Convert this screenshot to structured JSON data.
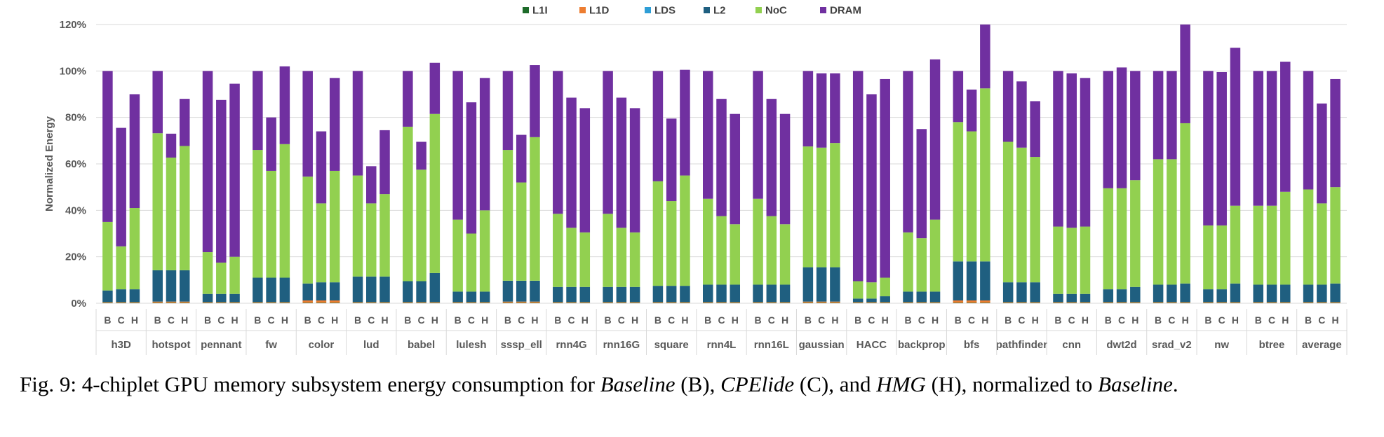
{
  "chart_data": {
    "type": "bar",
    "stacked": true,
    "ylabel": "Normalized Energy",
    "ylim": [
      0,
      120
    ],
    "yticks": [
      "0%",
      "20%",
      "40%",
      "60%",
      "80%",
      "100%",
      "120%"
    ],
    "grid": true,
    "legend_position": "top-center",
    "configs": [
      "B",
      "C",
      "H"
    ],
    "series": [
      {
        "name": "L1I",
        "color": "#1e6b2a"
      },
      {
        "name": "L1D",
        "color": "#ed7d31"
      },
      {
        "name": "LDS",
        "color": "#2e9ed6"
      },
      {
        "name": "L2",
        "color": "#1f5f80"
      },
      {
        "name": "NoC",
        "color": "#92d050"
      },
      {
        "name": "DRAM",
        "color": "#7030a0"
      }
    ],
    "benchmarks": [
      {
        "name": "h3D",
        "bars": [
          {
            "cfg": "B",
            "L1I": 0.2,
            "L1D": 0.3,
            "LDS": 0,
            "L2": 5,
            "NoC": 29.5,
            "DRAM": 65
          },
          {
            "cfg": "C",
            "L1I": 0.2,
            "L1D": 0.3,
            "LDS": 0,
            "L2": 5.5,
            "NoC": 18.5,
            "DRAM": 51
          },
          {
            "cfg": "H",
            "L1I": 0.2,
            "L1D": 0.3,
            "LDS": 0,
            "L2": 5.5,
            "NoC": 35,
            "DRAM": 49
          }
        ]
      },
      {
        "name": "hotspot",
        "bars": [
          {
            "cfg": "B",
            "L1I": 0.2,
            "L1D": 0.5,
            "LDS": 0,
            "L2": 13.5,
            "NoC": 59,
            "DRAM": 26.8
          },
          {
            "cfg": "C",
            "L1I": 0.2,
            "L1D": 0.5,
            "LDS": 0,
            "L2": 13.5,
            "NoC": 48.5,
            "DRAM": 10.3
          },
          {
            "cfg": "H",
            "L1I": 0.2,
            "L1D": 0.5,
            "LDS": 0,
            "L2": 13.5,
            "NoC": 53.5,
            "DRAM": 20.3
          }
        ]
      },
      {
        "name": "pennant",
        "bars": [
          {
            "cfg": "B",
            "L1I": 0.2,
            "L1D": 0.3,
            "LDS": 0,
            "L2": 3.5,
            "NoC": 18,
            "DRAM": 78
          },
          {
            "cfg": "C",
            "L1I": 0.2,
            "L1D": 0.3,
            "LDS": 0,
            "L2": 3.5,
            "NoC": 13.5,
            "DRAM": 70
          },
          {
            "cfg": "H",
            "L1I": 0.2,
            "L1D": 0.3,
            "LDS": 0,
            "L2": 3.5,
            "NoC": 16,
            "DRAM": 74.5
          }
        ]
      },
      {
        "name": "fw",
        "bars": [
          {
            "cfg": "B",
            "L1I": 0.2,
            "L1D": 0.3,
            "LDS": 0,
            "L2": 10.5,
            "NoC": 55,
            "DRAM": 34
          },
          {
            "cfg": "C",
            "L1I": 0.2,
            "L1D": 0.3,
            "LDS": 0,
            "L2": 10.5,
            "NoC": 46,
            "DRAM": 23
          },
          {
            "cfg": "H",
            "L1I": 0.2,
            "L1D": 0.3,
            "LDS": 0,
            "L2": 10.5,
            "NoC": 57.5,
            "DRAM": 33.5
          }
        ]
      },
      {
        "name": "color",
        "bars": [
          {
            "cfg": "B",
            "L1I": 0.2,
            "L1D": 1,
            "LDS": 0,
            "L2": 7.3,
            "NoC": 46,
            "DRAM": 45.5
          },
          {
            "cfg": "C",
            "L1I": 0.2,
            "L1D": 1,
            "LDS": 0,
            "L2": 7.8,
            "NoC": 34,
            "DRAM": 31
          },
          {
            "cfg": "H",
            "L1I": 0.2,
            "L1D": 1,
            "LDS": 0,
            "L2": 7.8,
            "NoC": 48,
            "DRAM": 40
          }
        ]
      },
      {
        "name": "lud",
        "bars": [
          {
            "cfg": "B",
            "L1I": 0.2,
            "L1D": 0.3,
            "LDS": 0,
            "L2": 11,
            "NoC": 43.5,
            "DRAM": 45
          },
          {
            "cfg": "C",
            "L1I": 0.2,
            "L1D": 0.3,
            "LDS": 0,
            "L2": 11,
            "NoC": 31.5,
            "DRAM": 16
          },
          {
            "cfg": "H",
            "L1I": 0.2,
            "L1D": 0.3,
            "LDS": 0,
            "L2": 11,
            "NoC": 35.5,
            "DRAM": 27.5
          }
        ]
      },
      {
        "name": "babel",
        "bars": [
          {
            "cfg": "B",
            "L1I": 0.2,
            "L1D": 0.3,
            "LDS": 0,
            "L2": 9,
            "NoC": 66.5,
            "DRAM": 24
          },
          {
            "cfg": "C",
            "L1I": 0.2,
            "L1D": 0.3,
            "LDS": 0,
            "L2": 9,
            "NoC": 48,
            "DRAM": 12
          },
          {
            "cfg": "H",
            "L1I": 0.2,
            "L1D": 0.3,
            "LDS": 0,
            "L2": 12.5,
            "NoC": 68.5,
            "DRAM": 22
          }
        ]
      },
      {
        "name": "lulesh",
        "bars": [
          {
            "cfg": "B",
            "L1I": 0.2,
            "L1D": 0.3,
            "LDS": 0,
            "L2": 4.5,
            "NoC": 31,
            "DRAM": 64
          },
          {
            "cfg": "C",
            "L1I": 0.2,
            "L1D": 0.3,
            "LDS": 0,
            "L2": 4.5,
            "NoC": 25,
            "DRAM": 56.5
          },
          {
            "cfg": "H",
            "L1I": 0.2,
            "L1D": 0.3,
            "LDS": 0,
            "L2": 4.5,
            "NoC": 35,
            "DRAM": 57
          }
        ]
      },
      {
        "name": "sssp_ell",
        "bars": [
          {
            "cfg": "B",
            "L1I": 0.2,
            "L1D": 0.5,
            "LDS": 0,
            "L2": 9,
            "NoC": 56.3,
            "DRAM": 34
          },
          {
            "cfg": "C",
            "L1I": 0.2,
            "L1D": 0.5,
            "LDS": 0,
            "L2": 9,
            "NoC": 42.3,
            "DRAM": 20.5
          },
          {
            "cfg": "H",
            "L1I": 0.2,
            "L1D": 0.5,
            "LDS": 0,
            "L2": 9,
            "NoC": 61.8,
            "DRAM": 31
          }
        ]
      },
      {
        "name": "rnn4G",
        "bars": [
          {
            "cfg": "B",
            "L1I": 0.2,
            "L1D": 0.3,
            "LDS": 0,
            "L2": 6.5,
            "NoC": 31.5,
            "DRAM": 61.5
          },
          {
            "cfg": "C",
            "L1I": 0.2,
            "L1D": 0.3,
            "LDS": 0,
            "L2": 6.5,
            "NoC": 25.5,
            "DRAM": 56
          },
          {
            "cfg": "H",
            "L1I": 0.2,
            "L1D": 0.3,
            "LDS": 0,
            "L2": 6.5,
            "NoC": 23.5,
            "DRAM": 53.5
          }
        ]
      },
      {
        "name": "rnn16G",
        "bars": [
          {
            "cfg": "B",
            "L1I": 0.2,
            "L1D": 0.3,
            "LDS": 0,
            "L2": 6.5,
            "NoC": 31.5,
            "DRAM": 61.5
          },
          {
            "cfg": "C",
            "L1I": 0.2,
            "L1D": 0.3,
            "LDS": 0,
            "L2": 6.5,
            "NoC": 25.5,
            "DRAM": 56
          },
          {
            "cfg": "H",
            "L1I": 0.2,
            "L1D": 0.3,
            "LDS": 0,
            "L2": 6.5,
            "NoC": 23.5,
            "DRAM": 53.5
          }
        ]
      },
      {
        "name": "square",
        "bars": [
          {
            "cfg": "B",
            "L1I": 0.2,
            "L1D": 0.3,
            "LDS": 0,
            "L2": 7,
            "NoC": 45,
            "DRAM": 47.5
          },
          {
            "cfg": "C",
            "L1I": 0.2,
            "L1D": 0.3,
            "LDS": 0,
            "L2": 7,
            "NoC": 36.5,
            "DRAM": 35.5
          },
          {
            "cfg": "H",
            "L1I": 0.2,
            "L1D": 0.3,
            "LDS": 0,
            "L2": 7,
            "NoC": 47.5,
            "DRAM": 45.5
          }
        ]
      },
      {
        "name": "rnn4L",
        "bars": [
          {
            "cfg": "B",
            "L1I": 0.2,
            "L1D": 0.3,
            "LDS": 0,
            "L2": 7.5,
            "NoC": 37,
            "DRAM": 55
          },
          {
            "cfg": "C",
            "L1I": 0.2,
            "L1D": 0.3,
            "LDS": 0,
            "L2": 7.5,
            "NoC": 29.5,
            "DRAM": 50.5
          },
          {
            "cfg": "H",
            "L1I": 0.2,
            "L1D": 0.3,
            "LDS": 0,
            "L2": 7.5,
            "NoC": 26,
            "DRAM": 47.5
          }
        ]
      },
      {
        "name": "rnn16L",
        "bars": [
          {
            "cfg": "B",
            "L1I": 0.2,
            "L1D": 0.3,
            "LDS": 0,
            "L2": 7.5,
            "NoC": 37,
            "DRAM": 55
          },
          {
            "cfg": "C",
            "L1I": 0.2,
            "L1D": 0.3,
            "LDS": 0,
            "L2": 7.5,
            "NoC": 29.5,
            "DRAM": 50.5
          },
          {
            "cfg": "H",
            "L1I": 0.2,
            "L1D": 0.3,
            "LDS": 0,
            "L2": 7.5,
            "NoC": 26,
            "DRAM": 47.5
          }
        ]
      },
      {
        "name": "gaussian",
        "bars": [
          {
            "cfg": "B",
            "L1I": 0.2,
            "L1D": 0.5,
            "LDS": 0,
            "L2": 14.8,
            "NoC": 52,
            "DRAM": 32.5
          },
          {
            "cfg": "C",
            "L1I": 0.2,
            "L1D": 0.5,
            "LDS": 0,
            "L2": 14.8,
            "NoC": 51.5,
            "DRAM": 32
          },
          {
            "cfg": "H",
            "L1I": 0.2,
            "L1D": 0.5,
            "LDS": 0,
            "L2": 14.8,
            "NoC": 53.5,
            "DRAM": 30
          }
        ]
      },
      {
        "name": "HACC",
        "bars": [
          {
            "cfg": "B",
            "L1I": 0.2,
            "L1D": 0.3,
            "LDS": 0,
            "L2": 1.5,
            "NoC": 7.5,
            "DRAM": 90.5
          },
          {
            "cfg": "C",
            "L1I": 0.2,
            "L1D": 0.3,
            "LDS": 0,
            "L2": 1.5,
            "NoC": 7,
            "DRAM": 81
          },
          {
            "cfg": "H",
            "L1I": 0.2,
            "L1D": 0.3,
            "LDS": 0,
            "L2": 2.5,
            "NoC": 8,
            "DRAM": 85.5
          }
        ]
      },
      {
        "name": "backprop",
        "bars": [
          {
            "cfg": "B",
            "L1I": 0.2,
            "L1D": 0.3,
            "LDS": 0,
            "L2": 4.5,
            "NoC": 25.5,
            "DRAM": 69.5
          },
          {
            "cfg": "C",
            "L1I": 0.2,
            "L1D": 0.3,
            "LDS": 0,
            "L2": 4.5,
            "NoC": 23,
            "DRAM": 47
          },
          {
            "cfg": "H",
            "L1I": 0.2,
            "L1D": 0.3,
            "LDS": 0,
            "L2": 4.5,
            "NoC": 31,
            "DRAM": 69
          }
        ]
      },
      {
        "name": "bfs",
        "bars": [
          {
            "cfg": "B",
            "L1I": 0.2,
            "L1D": 1,
            "LDS": 0,
            "L2": 16.8,
            "NoC": 60,
            "DRAM": 22
          },
          {
            "cfg": "C",
            "L1I": 0.2,
            "L1D": 1,
            "LDS": 0,
            "L2": 16.8,
            "NoC": 56,
            "DRAM": 18
          },
          {
            "cfg": "H",
            "L1I": 0.2,
            "L1D": 1,
            "LDS": 0,
            "L2": 16.8,
            "NoC": 74.5,
            "DRAM": 27.5
          }
        ]
      },
      {
        "name": "pathfinder",
        "bars": [
          {
            "cfg": "B",
            "L1I": 0.2,
            "L1D": 0.3,
            "LDS": 0,
            "L2": 8.5,
            "NoC": 60.5,
            "DRAM": 30.5
          },
          {
            "cfg": "C",
            "L1I": 0.2,
            "L1D": 0.3,
            "LDS": 0,
            "L2": 8.5,
            "NoC": 58,
            "DRAM": 28.5
          },
          {
            "cfg": "H",
            "L1I": 0.2,
            "L1D": 0.3,
            "LDS": 0,
            "L2": 8.5,
            "NoC": 54,
            "DRAM": 24
          }
        ]
      },
      {
        "name": "cnn",
        "bars": [
          {
            "cfg": "B",
            "L1I": 0.2,
            "L1D": 0.3,
            "LDS": 0,
            "L2": 3.5,
            "NoC": 29,
            "DRAM": 67
          },
          {
            "cfg": "C",
            "L1I": 0.2,
            "L1D": 0.3,
            "LDS": 0,
            "L2": 3.5,
            "NoC": 28.5,
            "DRAM": 66.5
          },
          {
            "cfg": "H",
            "L1I": 0.2,
            "L1D": 0.3,
            "LDS": 0,
            "L2": 3.5,
            "NoC": 29,
            "DRAM": 64
          }
        ]
      },
      {
        "name": "dwt2d",
        "bars": [
          {
            "cfg": "B",
            "L1I": 0.2,
            "L1D": 0.3,
            "LDS": 0,
            "L2": 5.5,
            "NoC": 43.5,
            "DRAM": 50.5
          },
          {
            "cfg": "C",
            "L1I": 0.2,
            "L1D": 0.3,
            "LDS": 0,
            "L2": 5.5,
            "NoC": 43.5,
            "DRAM": 52
          },
          {
            "cfg": "H",
            "L1I": 0.2,
            "L1D": 0.3,
            "LDS": 0,
            "L2": 6.5,
            "NoC": 46,
            "DRAM": 47
          }
        ]
      },
      {
        "name": "srad_v2",
        "bars": [
          {
            "cfg": "B",
            "L1I": 0.2,
            "L1D": 0.3,
            "LDS": 0,
            "L2": 7.5,
            "NoC": 54,
            "DRAM": 38
          },
          {
            "cfg": "C",
            "L1I": 0.2,
            "L1D": 0.3,
            "LDS": 0,
            "L2": 7.5,
            "NoC": 54,
            "DRAM": 38
          },
          {
            "cfg": "H",
            "L1I": 0.2,
            "L1D": 0.3,
            "LDS": 0,
            "L2": 8,
            "NoC": 69,
            "DRAM": 42.5
          }
        ]
      },
      {
        "name": "nw",
        "bars": [
          {
            "cfg": "B",
            "L1I": 0.2,
            "L1D": 0.3,
            "LDS": 0,
            "L2": 5.5,
            "NoC": 27.5,
            "DRAM": 66.5
          },
          {
            "cfg": "C",
            "L1I": 0.2,
            "L1D": 0.3,
            "LDS": 0,
            "L2": 5.5,
            "NoC": 27.5,
            "DRAM": 66
          },
          {
            "cfg": "H",
            "L1I": 0.2,
            "L1D": 0.3,
            "LDS": 0,
            "L2": 8,
            "NoC": 33.5,
            "DRAM": 68
          }
        ]
      },
      {
        "name": "btree",
        "bars": [
          {
            "cfg": "B",
            "L1I": 0.2,
            "L1D": 0.3,
            "LDS": 0,
            "L2": 7.5,
            "NoC": 34,
            "DRAM": 58
          },
          {
            "cfg": "C",
            "L1I": 0.2,
            "L1D": 0.3,
            "LDS": 0,
            "L2": 7.5,
            "NoC": 34,
            "DRAM": 58
          },
          {
            "cfg": "H",
            "L1I": 0.2,
            "L1D": 0.3,
            "LDS": 0,
            "L2": 7.5,
            "NoC": 40,
            "DRAM": 56
          }
        ]
      },
      {
        "name": "average",
        "bars": [
          {
            "cfg": "B",
            "L1I": 0.2,
            "L1D": 0.3,
            "LDS": 0,
            "L2": 7.5,
            "NoC": 41,
            "DRAM": 51
          },
          {
            "cfg": "C",
            "L1I": 0.2,
            "L1D": 0.3,
            "LDS": 0,
            "L2": 7.5,
            "NoC": 35,
            "DRAM": 43
          },
          {
            "cfg": "H",
            "L1I": 0.2,
            "L1D": 0.3,
            "LDS": 0,
            "L2": 8,
            "NoC": 41.5,
            "DRAM": 46.5
          }
        ]
      }
    ]
  },
  "caption": {
    "prefix": "Fig. 9: 4-chiplet GPU memory subsystem energy consumption for ",
    "baseline": "Baseline",
    "b_abbr": " (B), ",
    "cpelide": "CPElide",
    "c_abbr": " (C), and ",
    "hmg": "HMG",
    "h_abbr": " (H), normalized to ",
    "baseline2": "Baseline",
    "end": "."
  }
}
